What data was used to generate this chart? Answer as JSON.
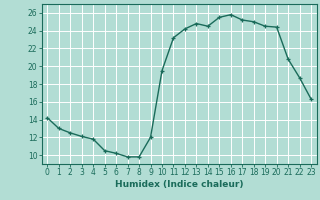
{
  "x": [
    0,
    1,
    2,
    3,
    4,
    5,
    6,
    7,
    8,
    9,
    10,
    11,
    12,
    13,
    14,
    15,
    16,
    17,
    18,
    19,
    20,
    21,
    22,
    23
  ],
  "y": [
    14.2,
    13.0,
    12.5,
    12.1,
    11.8,
    10.5,
    10.2,
    9.8,
    9.8,
    12.0,
    19.5,
    23.2,
    24.2,
    24.8,
    24.5,
    25.5,
    25.8,
    25.2,
    25.0,
    24.5,
    24.4,
    20.8,
    18.7,
    16.3
  ],
  "line_color": "#1a6b5a",
  "bg_color": "#b2ddd4",
  "grid_color": "#ffffff",
  "xlabel": "Humidex (Indice chaleur)",
  "ylim": [
    9,
    27
  ],
  "xlim": [
    -0.5,
    23.5
  ],
  "yticks": [
    10,
    12,
    14,
    16,
    18,
    20,
    22,
    24,
    26
  ],
  "xticks": [
    0,
    1,
    2,
    3,
    4,
    5,
    6,
    7,
    8,
    9,
    10,
    11,
    12,
    13,
    14,
    15,
    16,
    17,
    18,
    19,
    20,
    21,
    22,
    23
  ],
  "xtick_labels": [
    "0",
    "1",
    "2",
    "3",
    "4",
    "5",
    "6",
    "7",
    "8",
    "9",
    "10",
    "11",
    "12",
    "13",
    "14",
    "15",
    "16",
    "17",
    "18",
    "19",
    "20",
    "21",
    "22",
    "23"
  ],
  "axis_fontsize": 6.5,
  "tick_fontsize": 5.5,
  "linewidth": 1.0,
  "markersize": 3.5,
  "marker": "+"
}
